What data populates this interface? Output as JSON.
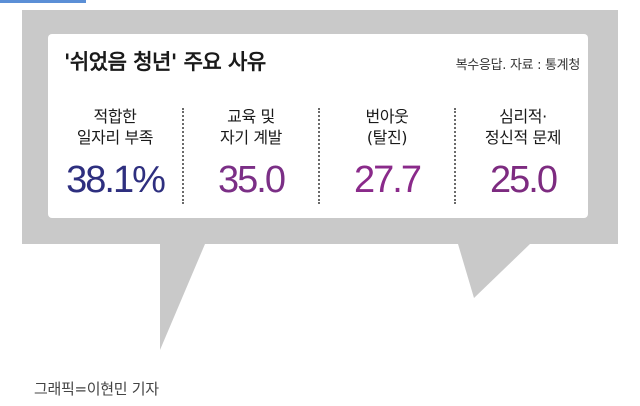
{
  "chart_data": {
    "type": "table",
    "title": "'쉬었음 청년' 주요 사유",
    "note": "복수응답. 자료 : 통계청",
    "categories": [
      [
        "적합한",
        "일자리 부족"
      ],
      [
        "교육 및",
        "자기 계발"
      ],
      [
        "번아웃",
        "(탈진)"
      ],
      [
        "심리적·",
        "정신적 문제"
      ]
    ],
    "values": [
      38.1,
      35.0,
      27.7,
      25.0
    ],
    "value_labels": [
      "38.1%",
      "35.0",
      "27.7",
      "25.0"
    ],
    "value_colors": [
      "#2e2f7f",
      "#7b2f86",
      "#8a2a8a",
      "#7d2b80"
    ]
  },
  "credit": "그래픽=이현민 기자",
  "colors": {
    "bubble_outline": "#c9c9c9",
    "panel_fill": "#ffffff",
    "text": "#1a1a1a"
  }
}
